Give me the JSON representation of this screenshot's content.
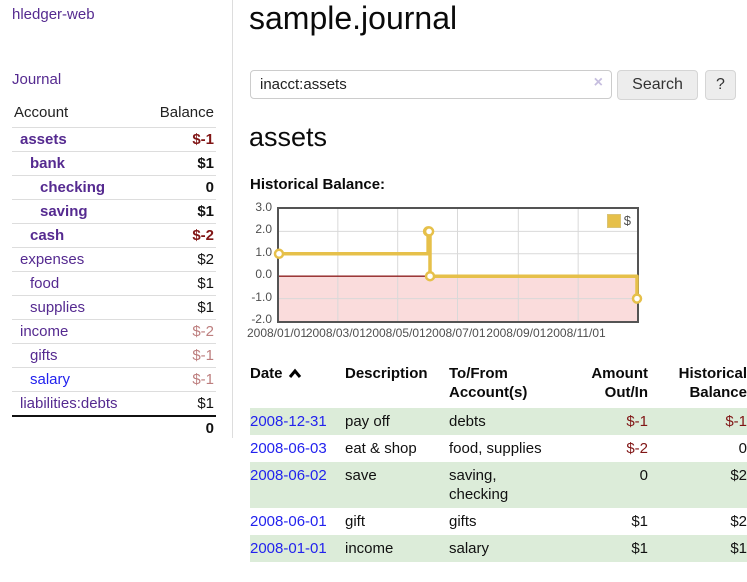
{
  "app": {
    "brand": "hledger-web",
    "nav_journal": "Journal"
  },
  "colors": {
    "link_purple": "#552a90",
    "link_blue": "#2222ee",
    "negative_strong": "#801515",
    "negative_soft": "#bd7e7e",
    "row_green": "#dcecd9",
    "chart_line": "#e6c04a",
    "chart_fill_negative": "#fadcdc",
    "chart_zero_line": "#8f2020",
    "chart_grid": "#d9d9d9"
  },
  "sidebar": {
    "accounts_header": {
      "account": "Account",
      "balance": "Balance"
    },
    "accounts": [
      {
        "name": "assets",
        "balance": "$-1"
      },
      {
        "name": "bank",
        "balance": "$1"
      },
      {
        "name": "checking",
        "balance": "0"
      },
      {
        "name": "saving",
        "balance": "$1"
      },
      {
        "name": "cash",
        "balance": "$-2"
      },
      {
        "name": "expenses",
        "balance": "$2"
      },
      {
        "name": "food",
        "balance": "$1"
      },
      {
        "name": "supplies",
        "balance": "$1"
      },
      {
        "name": "income",
        "balance": "$-2"
      },
      {
        "name": "gifts",
        "balance": "$-1"
      },
      {
        "name": "salary",
        "balance": "$-1"
      },
      {
        "name": "liabilities:debts",
        "balance": "$1"
      }
    ],
    "total": "0"
  },
  "header": {
    "title": "sample.journal"
  },
  "search": {
    "value": "inacct:assets",
    "clear_icon": "×",
    "button": "Search",
    "help_button": "?"
  },
  "register": {
    "heading": "assets",
    "chart_label": "Historical Balance:"
  },
  "chart_data": {
    "type": "line",
    "style": "step",
    "title": "Historical Balance:",
    "series": [
      {
        "name": "$",
        "points": [
          [
            "2008/01/01",
            1
          ],
          [
            "2008/06/01",
            2
          ],
          [
            "2008/06/02",
            2
          ],
          [
            "2008/06/03",
            0
          ],
          [
            "2008/12/31",
            -1
          ]
        ]
      }
    ],
    "x_range": [
      "2008/01/01",
      "2008/12/31"
    ],
    "ylim": [
      -2,
      3
    ],
    "y_ticks": [
      "3.0",
      "2.0",
      "1.0",
      "0.0",
      "-1.0",
      "-2.0"
    ],
    "x_ticks": [
      "2008/01/01",
      "2008/03/01",
      "2008/05/01",
      "2008/07/01",
      "2008/09/01",
      "2008/11/01"
    ],
    "legend": {
      "label": "$",
      "position": "top-right"
    },
    "grid": true
  },
  "table": {
    "sort_icon": "chevron-up",
    "headers": {
      "date": "Date",
      "description": "Description",
      "accounts": "To/From Account(s)",
      "amount": "Amount Out/In",
      "balance": "Historical Balance"
    },
    "rows": [
      {
        "date": "2008-12-31",
        "description": "pay off",
        "accounts": "debts",
        "amount": "$-1",
        "balance": "$-1"
      },
      {
        "date": "2008-06-03",
        "description": "eat & shop",
        "accounts": "food, supplies",
        "amount": "$-2",
        "balance": "0"
      },
      {
        "date": "2008-06-02",
        "description": "save",
        "accounts": "saving, checking",
        "amount": "0",
        "balance": "$2"
      },
      {
        "date": "2008-06-01",
        "description": "gift",
        "accounts": "gifts",
        "amount": "$1",
        "balance": "$2"
      },
      {
        "date": "2008-01-01",
        "description": "income",
        "accounts": "salary",
        "amount": "$1",
        "balance": "$1"
      }
    ]
  }
}
